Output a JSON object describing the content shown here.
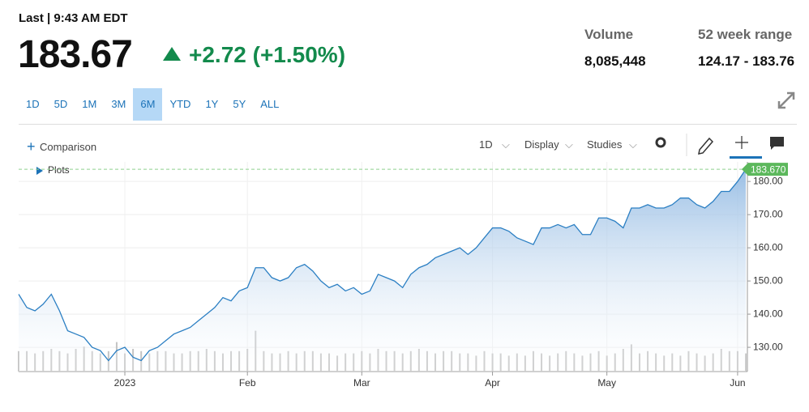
{
  "header": {
    "last": "Last | 9:43 AM EDT",
    "price": "183.67",
    "change": "+2.72 (+1.50%)"
  },
  "stats": [
    {
      "label": "Volume",
      "value": "8,085,448"
    },
    {
      "label": "52 week range",
      "value": "124.17 - 183.76"
    }
  ],
  "ranges": [
    "1D",
    "5D",
    "1M",
    "3M",
    "6M",
    "YTD",
    "1Y",
    "5Y",
    "ALL"
  ],
  "selected_range": "6M",
  "toolbar": {
    "comparison": "Comparison",
    "interval": "1D",
    "display": "Display",
    "studies": "Studies",
    "plots": "Plots"
  },
  "chart_data": {
    "type": "area",
    "color": "#2b7fc3",
    "categories": [
      null,
      null,
      null,
      null,
      null,
      null,
      null,
      null,
      null,
      null,
      null,
      null,
      null,
      "2023",
      null,
      null,
      null,
      null,
      null,
      null,
      null,
      null,
      null,
      null,
      null,
      null,
      null,
      null,
      "Feb",
      null,
      null,
      null,
      null,
      null,
      null,
      null,
      null,
      null,
      null,
      null,
      null,
      null,
      "Mar",
      null,
      null,
      null,
      null,
      null,
      null,
      null,
      null,
      null,
      null,
      null,
      null,
      null,
      null,
      null,
      "Apr",
      null,
      null,
      null,
      null,
      null,
      null,
      null,
      null,
      null,
      null,
      null,
      null,
      null,
      "May",
      null,
      null,
      null,
      null,
      null,
      null,
      null,
      null,
      null,
      null,
      null,
      null,
      null,
      null,
      null,
      "Jun",
      null
    ],
    "values": [
      146,
      142,
      141,
      143,
      146,
      141,
      135,
      134,
      133,
      130,
      129,
      126,
      129,
      130,
      127,
      126,
      129,
      130,
      132,
      134,
      135,
      136,
      138,
      140,
      142,
      145,
      144,
      147,
      148,
      154,
      154,
      151,
      150,
      151,
      154,
      155,
      153,
      150,
      148,
      149,
      147,
      148,
      146,
      147,
      152,
      151,
      150,
      148,
      152,
      154,
      155,
      157,
      158,
      159,
      160,
      158,
      160,
      163,
      166,
      166,
      165,
      163,
      162,
      161,
      166,
      166,
      167,
      166,
      167,
      164,
      164,
      169,
      169,
      168,
      166,
      172,
      172,
      173,
      172,
      172,
      173,
      175,
      175,
      173,
      172,
      174,
      177,
      177,
      180,
      183.67
    ],
    "volume": [
      9,
      9,
      8,
      9,
      10,
      9,
      8,
      10,
      11,
      9,
      8,
      9,
      13,
      8,
      10,
      9,
      8,
      9,
      9,
      8,
      8,
      9,
      9,
      10,
      9,
      8,
      9,
      9,
      10,
      18,
      9,
      8,
      8,
      9,
      8,
      9,
      9,
      8,
      8,
      7,
      8,
      8,
      9,
      8,
      10,
      9,
      9,
      8,
      9,
      10,
      9,
      8,
      9,
      9,
      8,
      8,
      7,
      9,
      8,
      8,
      7,
      8,
      7,
      9,
      8,
      7,
      8,
      9,
      8,
      7,
      8,
      9,
      7,
      8,
      10,
      12,
      8,
      9,
      8,
      7,
      8,
      7,
      9,
      8,
      7,
      8,
      10,
      9,
      9,
      8
    ],
    "ylim": [
      122.7,
      185.9
    ],
    "yticks": [
      {
        "value": 130,
        "label": "130.00"
      },
      {
        "value": 140,
        "label": "140.00"
      },
      {
        "value": 150,
        "label": "150.00"
      },
      {
        "value": 160,
        "label": "160.00"
      },
      {
        "value": 170,
        "label": "170.00"
      },
      {
        "value": 180,
        "label": "180.00"
      }
    ],
    "last_marker": {
      "value": 183.67,
      "label": "183.670"
    },
    "grid": true
  }
}
